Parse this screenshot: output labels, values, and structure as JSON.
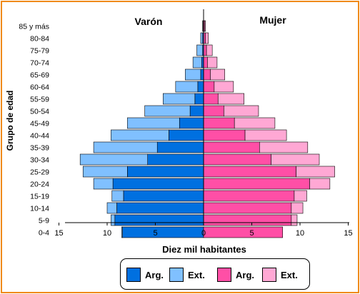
{
  "chart_data": {
    "type": "bar",
    "orientation": "horizontal-pyramid",
    "title_left": "Varón",
    "title_right": "Mujer",
    "xlabel": "Diez mil habitantes",
    "ylabel": "Grupo de edad",
    "xlim": [
      -15,
      15
    ],
    "x_ticks": [
      "15",
      "10",
      "5",
      "0",
      "5",
      "10",
      "15"
    ],
    "categories": [
      "0-4",
      "5-9",
      "10-14",
      "15-19",
      "20-24",
      "25-29",
      "30-34",
      "35-39",
      "40-44",
      "45-49",
      "50-54",
      "55-59",
      "60-64",
      "65-69",
      "70-74",
      "75-79",
      "80-84",
      "85 y más"
    ],
    "series": [
      {
        "name": "Arg.",
        "side": "male",
        "color": "#0070e0",
        "values": [
          8.4,
          9.2,
          9.0,
          8.3,
          9.4,
          7.9,
          5.8,
          4.8,
          3.6,
          2.5,
          1.4,
          0.9,
          0.6,
          0.3,
          0.2,
          0.1,
          0.1,
          0.05
        ]
      },
      {
        "name": "Ext.",
        "side": "male",
        "color": "#80c0ff",
        "values": [
          0.1,
          0.4,
          1.0,
          1.2,
          2.0,
          4.6,
          7.0,
          6.6,
          6.0,
          5.4,
          4.7,
          3.3,
          2.3,
          1.6,
          0.9,
          0.6,
          0.2,
          0.05
        ]
      },
      {
        "name": "Arg.",
        "side": "female",
        "color": "#ff4fa6",
        "values": [
          8.2,
          9.1,
          9.1,
          9.4,
          11.0,
          9.6,
          7.0,
          5.8,
          4.3,
          3.2,
          2.1,
          1.5,
          1.1,
          0.7,
          0.4,
          0.3,
          0.2,
          0.1
        ]
      },
      {
        "name": "Ext.",
        "side": "female",
        "color": "#ffa8d4",
        "values": [
          0.0,
          0.6,
          1.2,
          1.3,
          2.1,
          4.0,
          5.0,
          5.0,
          4.3,
          4.2,
          3.6,
          2.7,
          2.0,
          1.5,
          1.0,
          0.6,
          0.3,
          0.1
        ]
      }
    ],
    "legend": [
      "Arg.",
      "Ext.",
      "Arg.",
      "Ext."
    ],
    "legend_position": "bottom",
    "grid": false
  }
}
